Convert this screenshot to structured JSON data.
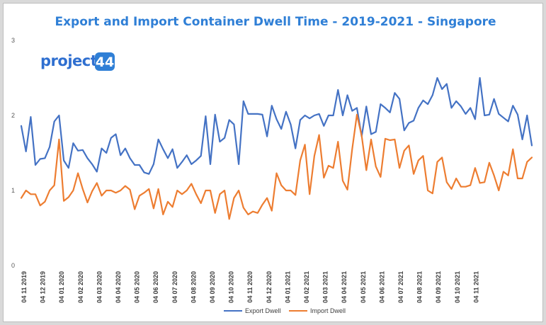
{
  "logo": {
    "text": "project",
    "badge": "44"
  },
  "colors": {
    "export": "#4472c4",
    "import": "#ed7d31",
    "title": "#2f7fd6",
    "grid": "#e0e0e0"
  },
  "chart_data": {
    "type": "line",
    "title": "Export and Import Container Dwell Time - 2019-2021 - Singapore",
    "xlabel": "",
    "ylabel": "",
    "ylim": [
      0,
      3
    ],
    "yticks": [
      "0",
      "1",
      "2",
      "3"
    ],
    "grid": false,
    "legend_position": "bottom",
    "x_tick_labels": [
      "04 11 2019",
      "04 12 2019",
      "04 01 2020",
      "04 02 2020",
      "04 03 2020",
      "04 04 2020",
      "04 05 2020",
      "04 06 2020",
      "04 07 2020",
      "04 08 2020",
      "04 09 2020",
      "04 10 2020",
      "04 11 2020",
      "04 12 2020",
      "04 01 2021",
      "04 02 2021",
      "04 03 2021",
      "04 04 2021",
      "04 05 2021",
      "04 06 2021",
      "04 07 2021",
      "04 08 2021",
      "04 09 2021",
      "04 10 2021",
      "04 11 2021"
    ],
    "series": [
      {
        "name": "Export Dwell",
        "values": [
          1.86,
          1.52,
          1.98,
          1.34,
          1.42,
          1.43,
          1.58,
          1.92,
          2.0,
          1.4,
          1.3,
          1.63,
          1.53,
          1.54,
          1.43,
          1.35,
          1.25,
          1.56,
          1.5,
          1.7,
          1.75,
          1.47,
          1.56,
          1.43,
          1.34,
          1.34,
          1.24,
          1.22,
          1.35,
          1.68,
          1.55,
          1.43,
          1.55,
          1.3,
          1.38,
          1.47,
          1.35,
          1.4,
          1.46,
          1.99,
          1.35,
          2.01,
          1.65,
          1.7,
          1.94,
          1.88,
          1.35,
          2.19,
          2.02,
          2.02,
          2.02,
          2.01,
          1.72,
          2.13,
          1.95,
          1.82,
          2.05,
          1.88,
          1.56,
          1.94,
          2.0,
          1.96,
          2.0,
          2.02,
          1.86,
          2.0,
          2.0,
          2.34,
          2.0,
          2.27,
          2.06,
          2.1,
          1.72,
          2.12,
          1.75,
          1.78,
          2.15,
          2.1,
          2.04,
          2.3,
          2.22,
          1.8,
          1.9,
          1.93,
          2.1,
          2.2,
          2.15,
          2.27,
          2.5,
          2.35,
          2.42,
          2.1,
          2.19,
          2.12,
          2.02,
          2.1,
          1.95,
          2.5,
          2.0,
          2.01,
          2.22,
          2.02,
          1.97,
          1.92,
          2.13,
          2.01,
          1.68,
          2.0,
          1.6
        ]
      },
      {
        "name": "Import Dwell",
        "values": [
          0.9,
          1.0,
          0.95,
          0.95,
          0.8,
          0.85,
          1.0,
          1.07,
          1.68,
          0.86,
          0.91,
          1.0,
          1.23,
          1.02,
          0.84,
          0.99,
          1.1,
          0.93,
          1.0,
          1.0,
          0.97,
          1.0,
          1.06,
          1.01,
          0.75,
          0.93,
          0.97,
          1.02,
          0.76,
          1.02,
          0.68,
          0.85,
          0.78,
          1.0,
          0.95,
          1.0,
          1.09,
          0.95,
          0.83,
          1.0,
          1.0,
          0.7,
          0.95,
          1.0,
          0.62,
          0.9,
          1.0,
          0.77,
          0.68,
          0.72,
          0.7,
          0.81,
          0.9,
          0.73,
          1.23,
          1.07,
          1.0,
          1.0,
          0.94,
          1.4,
          1.61,
          0.95,
          1.46,
          1.74,
          1.17,
          1.33,
          1.3,
          1.65,
          1.13,
          1.01,
          1.55,
          2.01,
          1.73,
          1.27,
          1.68,
          1.32,
          1.18,
          1.69,
          1.67,
          1.68,
          1.3,
          1.53,
          1.6,
          1.22,
          1.4,
          1.46,
          1.0,
          0.96,
          1.38,
          1.44,
          1.11,
          1.02,
          1.16,
          1.05,
          1.05,
          1.07,
          1.3,
          1.1,
          1.11,
          1.37,
          1.2,
          1.0,
          1.25,
          1.2,
          1.55,
          1.16,
          1.16,
          1.38,
          1.44
        ]
      }
    ]
  }
}
